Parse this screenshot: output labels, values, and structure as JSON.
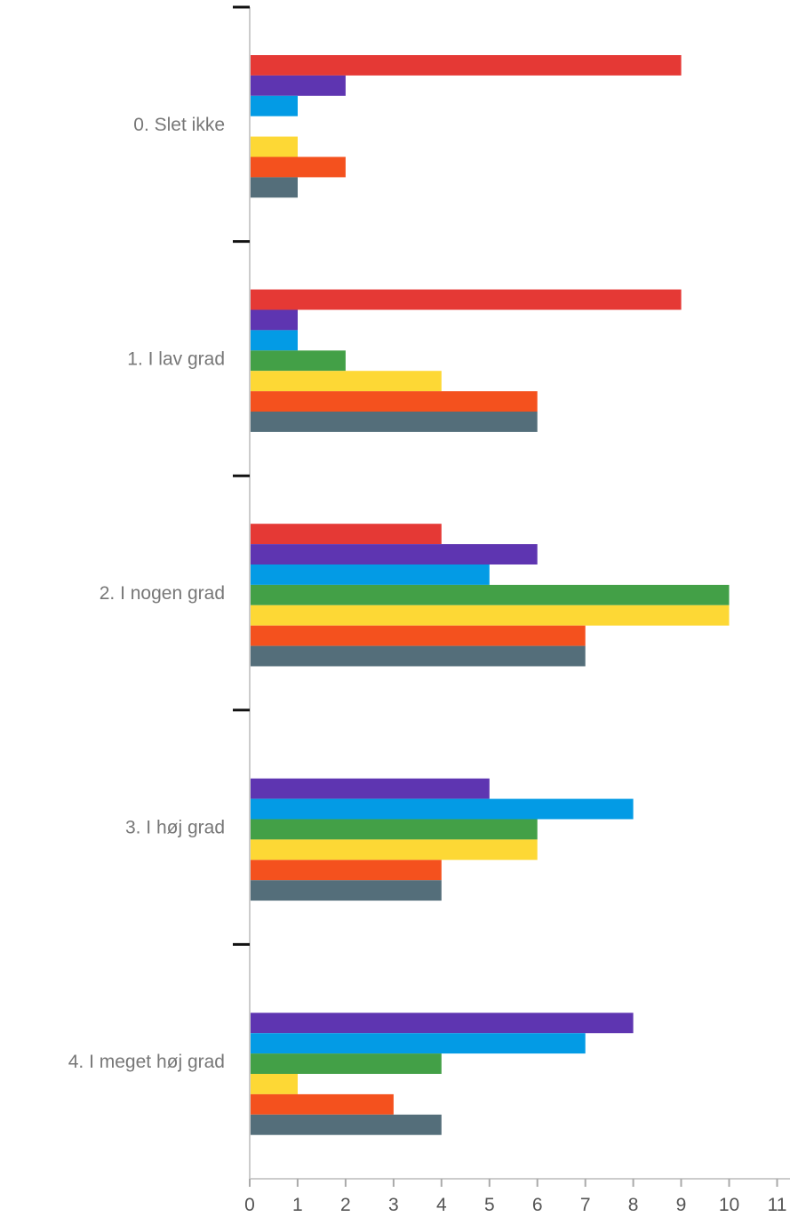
{
  "chart_data": {
    "type": "bar",
    "orientation": "horizontal",
    "categories": [
      "0. Slet ikke",
      "1. I lav grad",
      "2. I nogen grad",
      "3. I høj grad",
      "4. I meget høj grad"
    ],
    "series": [
      {
        "color": "#e53935",
        "values": [
          9,
          9,
          4,
          0,
          0
        ]
      },
      {
        "color": "#5e35b1",
        "values": [
          2,
          1,
          6,
          5,
          8
        ]
      },
      {
        "color": "#039be5",
        "values": [
          1,
          1,
          5,
          8,
          7
        ]
      },
      {
        "color": "#43a047",
        "values": [
          0,
          2,
          10,
          6,
          4
        ]
      },
      {
        "color": "#fdd835",
        "values": [
          1,
          4,
          10,
          6,
          1
        ]
      },
      {
        "color": "#f4511e",
        "values": [
          2,
          6,
          7,
          4,
          3
        ]
      },
      {
        "color": "#546e7a",
        "values": [
          1,
          6,
          7,
          4,
          4
        ]
      }
    ],
    "x_ticks": [
      "0",
      "1",
      "2",
      "3",
      "4",
      "5",
      "6",
      "7",
      "8",
      "9",
      "10",
      "11"
    ],
    "xlim": [
      0,
      11
    ],
    "grid": false,
    "legend": "none"
  }
}
